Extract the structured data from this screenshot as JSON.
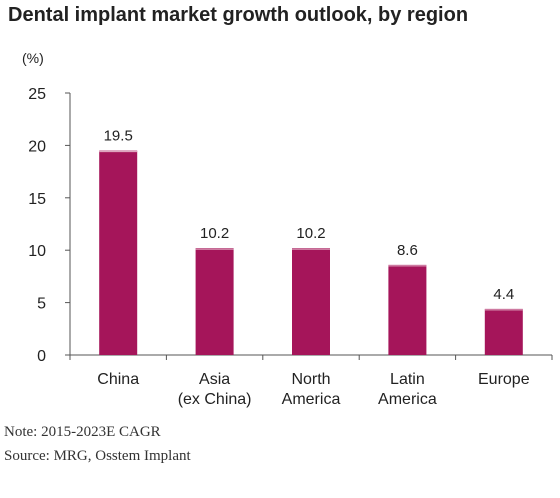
{
  "chart_data": {
    "type": "bar",
    "title": "Dental implant market growth outlook, by region",
    "unit_label": "(%)",
    "categories": [
      [
        "China"
      ],
      [
        "Asia",
        "(ex China)"
      ],
      [
        "North",
        "America"
      ],
      [
        "Latin",
        "America"
      ],
      [
        "Europe"
      ]
    ],
    "values": [
      19.5,
      10.2,
      10.2,
      8.6,
      4.4
    ],
    "data_labels": [
      "19.5",
      "10.2",
      "10.2",
      "8.6",
      "4.4"
    ],
    "ylim": [
      0,
      25
    ],
    "yticks": [
      0,
      5,
      10,
      15,
      20,
      25
    ],
    "bar_color": "#a5155a",
    "grid": false
  },
  "notes": {
    "note": "Note: 2015-2023E CAGR",
    "source": "Source: MRG, Osstem Implant"
  }
}
